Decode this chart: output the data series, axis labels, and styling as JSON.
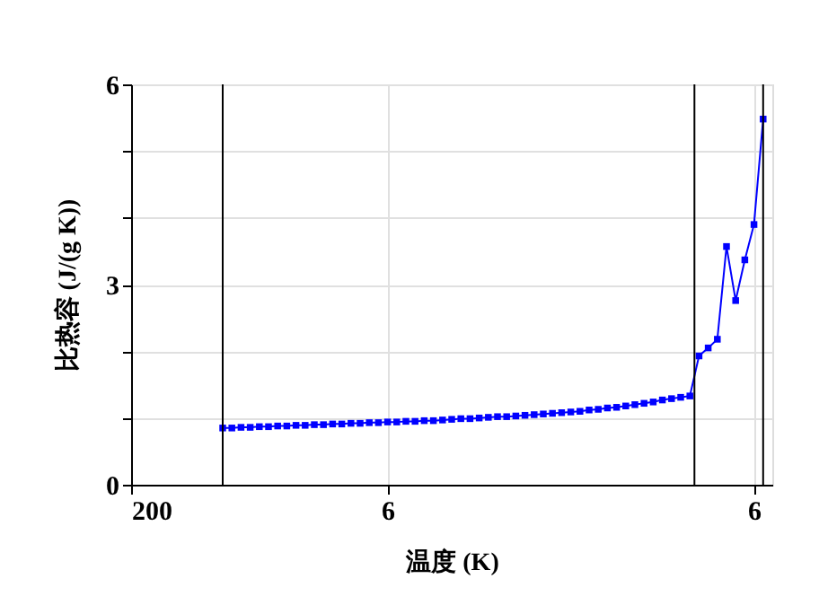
{
  "chart_data": {
    "type": "line",
    "xlabel": "温度 (K)",
    "ylabel": "比热容 (J/(g K))",
    "categories": [
      "200",
      null,
      null,
      null,
      null,
      null,
      null,
      null,
      null,
      null,
      null,
      null,
      null,
      null,
      null,
      null,
      null,
      null,
      null,
      null,
      null,
      null,
      null,
      null,
      null,
      null,
      null,
      null,
      "6",
      null,
      null,
      null,
      null,
      null,
      null,
      null,
      null,
      null,
      null,
      null,
      null,
      null,
      null,
      null,
      null,
      null,
      null,
      null,
      null,
      null,
      null,
      null,
      null,
      null,
      null,
      null,
      null,
      null,
      null,
      null,
      null,
      null,
      null,
      null,
      null,
      null,
      null,
      null,
      "6",
      null,
      null
    ],
    "series": [
      {
        "color": "#0000ff",
        "values": [
          null,
          null,
          null,
          null,
          null,
          null,
          null,
          null,
          null,
          null,
          0.85,
          0.85,
          0.86,
          0.86,
          0.87,
          0.87,
          0.88,
          0.88,
          0.89,
          0.89,
          0.9,
          0.9,
          0.91,
          0.91,
          0.92,
          0.92,
          0.93,
          0.93,
          0.94,
          0.94,
          0.95,
          0.95,
          0.96,
          0.96,
          0.97,
          0.98,
          0.99,
          0.99,
          1.0,
          1.01,
          1.02,
          1.02,
          1.03,
          1.04,
          1.05,
          1.06,
          1.07,
          1.08,
          1.09,
          1.1,
          1.12,
          1.13,
          1.15,
          1.16,
          1.18,
          1.2,
          1.22,
          1.24,
          1.27,
          1.29,
          1.31,
          1.33,
          1.93,
          2.05,
          2.18,
          3.57,
          2.76,
          3.37,
          3.9,
          5.48,
          null
        ]
      }
    ],
    "ylim": [
      0,
      6
    ],
    "yticks": [
      0,
      {
        "value": 1,
        "label": null
      },
      {
        "value": 2,
        "label": null
      },
      3,
      {
        "value": 4,
        "label": null
      },
      {
        "value": 5,
        "label": null
      },
      6
    ],
    "grid": true,
    "marker": "square",
    "line_style": "solid"
  }
}
